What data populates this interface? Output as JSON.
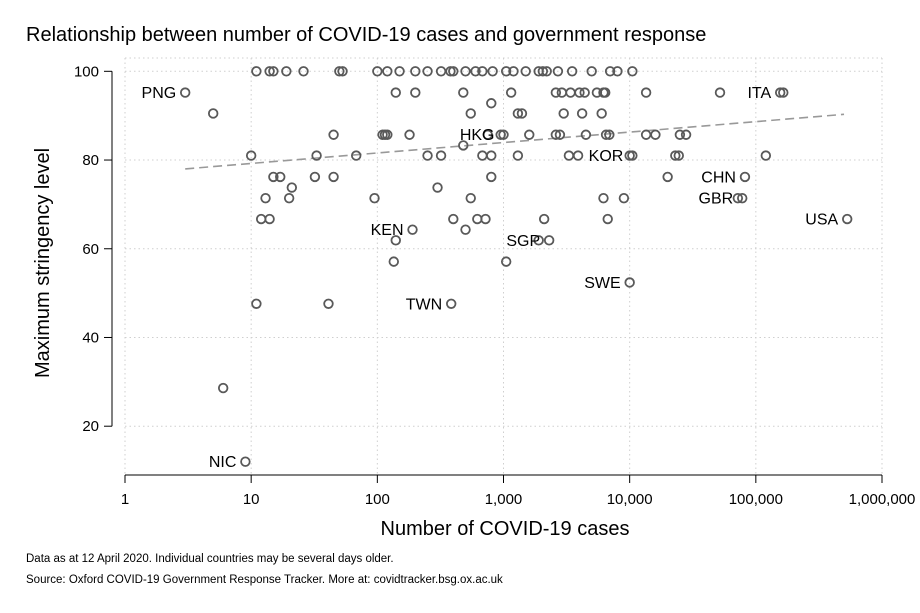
{
  "chart_data": {
    "type": "scatter",
    "title": "Relationship between number of COVID-19 cases and government response",
    "xlabel": "Number of COVID-19 cases",
    "ylabel": "Maximum stringency level",
    "x_scale": "log",
    "xlim": [
      1,
      1000000
    ],
    "ylim": [
      9,
      103
    ],
    "x_ticks": [
      1,
      10,
      100,
      1000,
      10000,
      100000,
      1000000
    ],
    "x_tick_labels": [
      "1",
      "10",
      "100",
      "1,000",
      "10,000",
      "100,000",
      "1,000,000"
    ],
    "y_ticks": [
      20,
      40,
      60,
      80,
      100
    ],
    "y_tick_labels": [
      "20",
      "40",
      "60",
      "80",
      "100"
    ],
    "grid": true,
    "marker_color": "#595959",
    "trend_color": "#999999",
    "trend_line": {
      "x": [
        3,
        500000
      ],
      "y": [
        78,
        90.3
      ]
    },
    "labeled_points": [
      {
        "label": "PNG",
        "x": 3,
        "y": 95.2
      },
      {
        "label": "NIC",
        "x": 9,
        "y": 12
      },
      {
        "label": "KEN",
        "x": 190,
        "y": 64.3
      },
      {
        "label": "TWN",
        "x": 385,
        "y": 47.6
      },
      {
        "label": "HKG",
        "x": 1000,
        "y": 85.7
      },
      {
        "label": "SGP",
        "x": 2300,
        "y": 61.9
      },
      {
        "label": "KOR",
        "x": 10500,
        "y": 81
      },
      {
        "label": "SWE",
        "x": 10000,
        "y": 52.4
      },
      {
        "label": "CHN",
        "x": 82000,
        "y": 76.2
      },
      {
        "label": "GBR",
        "x": 78000,
        "y": 71.4
      },
      {
        "label": "ITA",
        "x": 156000,
        "y": 95.2
      },
      {
        "label": "USA",
        "x": 530000,
        "y": 66.7
      }
    ],
    "points": [
      {
        "x": 11,
        "y": 100
      },
      {
        "x": 14,
        "y": 100
      },
      {
        "x": 15,
        "y": 100
      },
      {
        "x": 19,
        "y": 100
      },
      {
        "x": 26,
        "y": 100
      },
      {
        "x": 50,
        "y": 100
      },
      {
        "x": 53,
        "y": 100
      },
      {
        "x": 100,
        "y": 100
      },
      {
        "x": 120,
        "y": 100
      },
      {
        "x": 150,
        "y": 100
      },
      {
        "x": 200,
        "y": 100
      },
      {
        "x": 250,
        "y": 100
      },
      {
        "x": 320,
        "y": 100
      },
      {
        "x": 380,
        "y": 100
      },
      {
        "x": 400,
        "y": 100
      },
      {
        "x": 500,
        "y": 100
      },
      {
        "x": 600,
        "y": 100
      },
      {
        "x": 680,
        "y": 100
      },
      {
        "x": 820,
        "y": 100
      },
      {
        "x": 1050,
        "y": 100
      },
      {
        "x": 1200,
        "y": 100
      },
      {
        "x": 1500,
        "y": 100
      },
      {
        "x": 1900,
        "y": 100
      },
      {
        "x": 2050,
        "y": 100
      },
      {
        "x": 2200,
        "y": 100
      },
      {
        "x": 2700,
        "y": 100
      },
      {
        "x": 3500,
        "y": 100
      },
      {
        "x": 5000,
        "y": 100
      },
      {
        "x": 7000,
        "y": 100
      },
      {
        "x": 8000,
        "y": 100
      },
      {
        "x": 10500,
        "y": 100
      },
      {
        "x": 5,
        "y": 90.5
      },
      {
        "x": 140,
        "y": 95.2
      },
      {
        "x": 200,
        "y": 95.2
      },
      {
        "x": 480,
        "y": 95.2
      },
      {
        "x": 1150,
        "y": 95.2
      },
      {
        "x": 2600,
        "y": 95.2
      },
      {
        "x": 2900,
        "y": 95.2
      },
      {
        "x": 3400,
        "y": 95.2
      },
      {
        "x": 4000,
        "y": 95.2
      },
      {
        "x": 4400,
        "y": 95.2
      },
      {
        "x": 5500,
        "y": 95.2
      },
      {
        "x": 6200,
        "y": 95.2
      },
      {
        "x": 6400,
        "y": 95.2
      },
      {
        "x": 13500,
        "y": 95.2
      },
      {
        "x": 52000,
        "y": 95.2
      },
      {
        "x": 165000,
        "y": 95.2
      },
      {
        "x": 550,
        "y": 90.5
      },
      {
        "x": 800,
        "y": 92.8
      },
      {
        "x": 1300,
        "y": 90.5
      },
      {
        "x": 1400,
        "y": 90.5
      },
      {
        "x": 3000,
        "y": 90.5
      },
      {
        "x": 4200,
        "y": 90.5
      },
      {
        "x": 6000,
        "y": 90.5
      },
      {
        "x": 45,
        "y": 85.7
      },
      {
        "x": 110,
        "y": 85.7
      },
      {
        "x": 115,
        "y": 85.7
      },
      {
        "x": 120,
        "y": 85.7
      },
      {
        "x": 180,
        "y": 85.7
      },
      {
        "x": 750,
        "y": 85.7
      },
      {
        "x": 950,
        "y": 85.7
      },
      {
        "x": 1600,
        "y": 85.7
      },
      {
        "x": 2600,
        "y": 85.7
      },
      {
        "x": 2800,
        "y": 85.7
      },
      {
        "x": 4500,
        "y": 85.7
      },
      {
        "x": 6500,
        "y": 85.7
      },
      {
        "x": 6900,
        "y": 85.7
      },
      {
        "x": 13500,
        "y": 85.7
      },
      {
        "x": 16000,
        "y": 85.7
      },
      {
        "x": 25000,
        "y": 85.7
      },
      {
        "x": 28000,
        "y": 85.7
      },
      {
        "x": 10,
        "y": 81
      },
      {
        "x": 33,
        "y": 81
      },
      {
        "x": 68,
        "y": 81
      },
      {
        "x": 250,
        "y": 81
      },
      {
        "x": 320,
        "y": 81
      },
      {
        "x": 480,
        "y": 83.3
      },
      {
        "x": 680,
        "y": 81
      },
      {
        "x": 800,
        "y": 81
      },
      {
        "x": 1300,
        "y": 81
      },
      {
        "x": 3300,
        "y": 81
      },
      {
        "x": 3900,
        "y": 81
      },
      {
        "x": 10000,
        "y": 81
      },
      {
        "x": 23000,
        "y": 81
      },
      {
        "x": 24500,
        "y": 81
      },
      {
        "x": 120000,
        "y": 81
      },
      {
        "x": 15,
        "y": 76.2
      },
      {
        "x": 17,
        "y": 76.2
      },
      {
        "x": 32,
        "y": 76.2
      },
      {
        "x": 45,
        "y": 76.2
      },
      {
        "x": 800,
        "y": 76.2
      },
      {
        "x": 20000,
        "y": 76.2
      },
      {
        "x": 21,
        "y": 73.8
      },
      {
        "x": 300,
        "y": 73.8
      },
      {
        "x": 13,
        "y": 71.4
      },
      {
        "x": 20,
        "y": 71.4
      },
      {
        "x": 95,
        "y": 71.4
      },
      {
        "x": 550,
        "y": 71.4
      },
      {
        "x": 6200,
        "y": 71.4
      },
      {
        "x": 9000,
        "y": 71.4
      },
      {
        "x": 72000,
        "y": 71.4
      },
      {
        "x": 12,
        "y": 66.7
      },
      {
        "x": 14,
        "y": 66.7
      },
      {
        "x": 400,
        "y": 66.7
      },
      {
        "x": 620,
        "y": 66.7
      },
      {
        "x": 720,
        "y": 66.7
      },
      {
        "x": 2100,
        "y": 66.7
      },
      {
        "x": 6700,
        "y": 66.7
      },
      {
        "x": 500,
        "y": 64.3
      },
      {
        "x": 140,
        "y": 61.9
      },
      {
        "x": 1900,
        "y": 61.9
      },
      {
        "x": 135,
        "y": 57.1
      },
      {
        "x": 1050,
        "y": 57.1
      },
      {
        "x": 11,
        "y": 47.6
      },
      {
        "x": 41,
        "y": 47.6
      },
      {
        "x": 6,
        "y": 28.6
      }
    ]
  },
  "notes": {
    "line1": "Data as at 12 April 2020. Individual countries may be several days older.",
    "line2": "Source: Oxford COVID-19 Government Response Tracker. More at: covidtracker.bsg.ox.ac.uk"
  }
}
